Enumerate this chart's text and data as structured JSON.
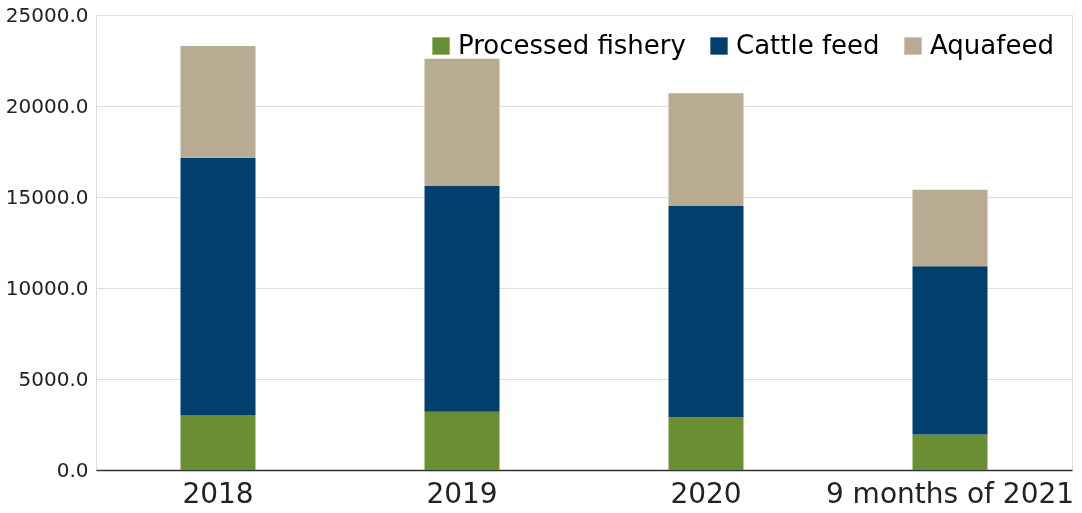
{
  "chart_data": {
    "type": "bar",
    "stacked": true,
    "categories": [
      "2018",
      "2019",
      "2020",
      "9 months of 2021"
    ],
    "series": [
      {
        "name": "Processed fishery",
        "color": "#6a8f32",
        "values": [
          3000,
          3200,
          2900,
          1950
        ]
      },
      {
        "name": "Cattle feed",
        "color": "#003f6e",
        "values": [
          14150,
          12400,
          11600,
          9250
        ]
      },
      {
        "name": "Aquafeed",
        "color": "#b9ab91",
        "values": [
          6150,
          7000,
          6200,
          4200
        ]
      }
    ],
    "ylim": [
      0,
      25000
    ],
    "yticks": [
      {
        "value": 0,
        "label": "0.0"
      },
      {
        "value": 5000,
        "label": "5000.0"
      },
      {
        "value": 10000,
        "label": "10000.0"
      },
      {
        "value": 15000,
        "label": "15000.0"
      },
      {
        "value": 20000,
        "label": "20000.0"
      },
      {
        "value": 25000,
        "label": "25000.0"
      }
    ],
    "grid": "y",
    "legend": "top right"
  }
}
